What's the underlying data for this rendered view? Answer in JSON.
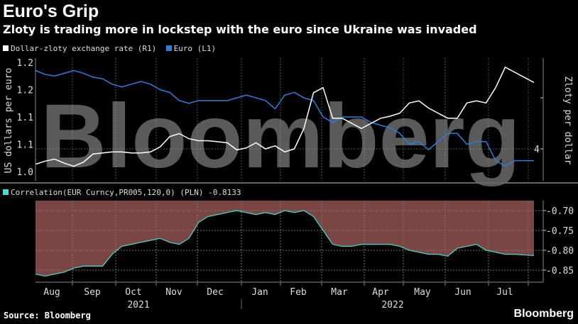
{
  "header": {
    "title": "Euro's Grip",
    "subtitle": "Zloty is trading more in lockstep with the euro since Ukraine was invaded"
  },
  "footer": {
    "source": "Source: Bloomberg",
    "brand": "Bloomberg"
  },
  "watermark": "Bloomberg",
  "colors": {
    "euro": "#2b7fd9",
    "zloty": "#ffffff",
    "correlation": "#40e0d0",
    "corr_fill": "#7a4543"
  },
  "chart_data": [
    {
      "type": "line",
      "title": "Euro's Grip",
      "legend": [
        "Dollar-zloty exchange rate (R1)",
        "Euro  (L1)"
      ],
      "ylabel_left": "US dollars per euro",
      "ylabel_right": "Zloty per dollar",
      "left_ticks": [
        {
          "v": 1.2,
          "label": "1.2"
        },
        {
          "v": 1.15,
          "label": "1.2"
        },
        {
          "v": 1.1,
          "label": "1.1"
        },
        {
          "v": 1.05,
          "label": "1.1"
        },
        {
          "v": 1.0,
          "label": "1.0"
        }
      ],
      "right_ticks": [
        {
          "v": 4.5,
          "label": ""
        },
        {
          "v": 4.0,
          "label": "4"
        }
      ],
      "ylim_left": [
        0.98,
        1.21
      ],
      "ylim_right": [
        3.7,
        4.9
      ],
      "series": [
        {
          "name": "Euro",
          "axis": "L1",
          "values": [
            1.185,
            1.178,
            1.175,
            1.18,
            1.185,
            1.18,
            1.173,
            1.17,
            1.16,
            1.155,
            1.16,
            1.165,
            1.16,
            1.15,
            1.145,
            1.13,
            1.125,
            1.13,
            1.13,
            1.13,
            1.13,
            1.135,
            1.14,
            1.135,
            1.13,
            1.115,
            1.14,
            1.145,
            1.135,
            1.13,
            1.1,
            1.09,
            1.1,
            1.1,
            1.1,
            1.09,
            1.085,
            1.08,
            1.07,
            1.05,
            1.055,
            1.04,
            1.055,
            1.07,
            1.07,
            1.05,
            1.055,
            1.055,
            1.02,
            1.01,
            1.02,
            1.02,
            1.02
          ]
        },
        {
          "name": "Dollar-zloty exchange rate",
          "axis": "R1",
          "values": [
            3.85,
            3.88,
            3.9,
            3.86,
            3.83,
            3.87,
            3.95,
            3.96,
            3.97,
            3.97,
            3.96,
            3.96,
            3.97,
            4.02,
            4.12,
            4.15,
            4.1,
            4.08,
            4.08,
            4.07,
            4.06,
            3.99,
            4.01,
            4.06,
            4.0,
            4.03,
            3.97,
            4.0,
            4.2,
            4.55,
            4.6,
            4.3,
            4.3,
            4.25,
            4.2,
            4.25,
            4.3,
            4.32,
            4.35,
            4.45,
            4.47,
            4.4,
            4.35,
            4.3,
            4.3,
            4.45,
            4.47,
            4.45,
            4.6,
            4.8,
            4.75,
            4.7,
            4.65
          ]
        }
      ]
    },
    {
      "type": "area",
      "legend": [
        "Correlation(EUR Curncy,PR005,120,0) (PLN) -0.8133"
      ],
      "ticks": [
        {
          "v": -0.7,
          "label": "-0.70"
        },
        {
          "v": -0.75,
          "label": "-0.75"
        },
        {
          "v": -0.8,
          "label": "-0.80"
        },
        {
          "v": -0.85,
          "label": "-0.85"
        }
      ],
      "ylim": [
        -0.885,
        -0.675
      ],
      "series": [
        {
          "name": "Correlation",
          "values": [
            -0.86,
            -0.865,
            -0.86,
            -0.855,
            -0.845,
            -0.84,
            -0.84,
            -0.84,
            -0.81,
            -0.79,
            -0.785,
            -0.78,
            -0.775,
            -0.77,
            -0.78,
            -0.785,
            -0.77,
            -0.73,
            -0.715,
            -0.71,
            -0.705,
            -0.7,
            -0.705,
            -0.71,
            -0.705,
            -0.71,
            -0.7,
            -0.705,
            -0.7,
            -0.715,
            -0.75,
            -0.785,
            -0.79,
            -0.79,
            -0.785,
            -0.785,
            -0.785,
            -0.785,
            -0.79,
            -0.8,
            -0.805,
            -0.81,
            -0.81,
            -0.815,
            -0.795,
            -0.79,
            -0.785,
            -0.8,
            -0.805,
            -0.81,
            -0.81,
            -0.812,
            -0.8133
          ]
        }
      ]
    },
    {
      "x_months": [
        "Aug",
        "Sep",
        "Oct",
        "Nov",
        "Dec",
        "Jan",
        "Feb",
        "Mar",
        "Apr",
        "May",
        "Jun",
        "Jul"
      ],
      "x_years": [
        "2021",
        "2022"
      ]
    }
  ]
}
